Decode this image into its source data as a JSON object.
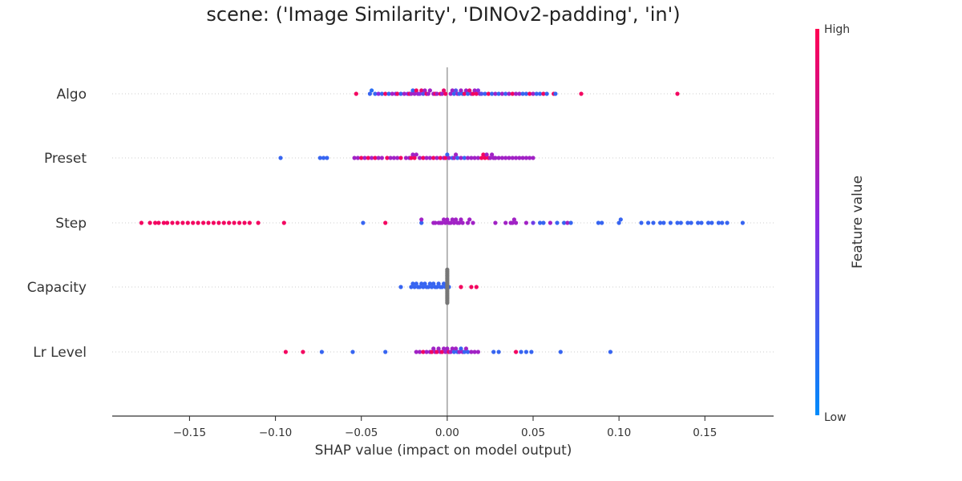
{
  "chart_data": {
    "type": "scatter",
    "subtype": "shap-beeswarm",
    "title": "scene: ('Image Similarity', 'DINOv2-padding', 'in')",
    "xlabel": "SHAP value (impact on model output)",
    "xlim": [
      -0.195,
      0.19
    ],
    "xticks": [
      -0.15,
      -0.1,
      -0.05,
      0.0,
      0.05,
      0.1,
      0.15
    ],
    "xtick_labels": [
      "−0.15",
      "−0.10",
      "−0.05",
      "0.00",
      "0.05",
      "0.10",
      "0.15"
    ],
    "grid": false,
    "colorbar": {
      "label": "Feature value",
      "high_label": "High",
      "low_label": "Low",
      "high_color": "#ff0052",
      "mid_color": "#8a2be2",
      "low_color": "#008bfb"
    },
    "zero_line_color": "#999999",
    "missing_value_color": "#777777",
    "features": [
      {
        "name": "Algo",
        "points": [
          [
            -0.053,
            0.95
          ],
          [
            -0.045,
            0.2
          ],
          [
            -0.044,
            0.15
          ],
          [
            -0.042,
            0.2
          ],
          [
            -0.04,
            0.5
          ],
          [
            -0.038,
            0.2
          ],
          [
            -0.036,
            0.95
          ],
          [
            -0.034,
            0.2
          ],
          [
            -0.032,
            0.6
          ],
          [
            -0.03,
            0.5
          ],
          [
            -0.029,
            0.95
          ],
          [
            -0.027,
            0.2
          ],
          [
            -0.025,
            0.6
          ],
          [
            -0.023,
            0.5
          ],
          [
            -0.022,
            0.95
          ],
          [
            -0.021,
            0.6
          ],
          [
            -0.02,
            0.2
          ],
          [
            -0.019,
            0.6
          ],
          [
            -0.018,
            0.95
          ],
          [
            -0.017,
            0.6
          ],
          [
            -0.016,
            0.5
          ],
          [
            -0.015,
            0.9
          ],
          [
            -0.014,
            0.3
          ],
          [
            -0.013,
            0.6
          ],
          [
            -0.012,
            0.95
          ],
          [
            -0.011,
            0.6
          ],
          [
            -0.01,
            0.6
          ],
          [
            -0.008,
            0.6
          ],
          [
            -0.007,
            0.95
          ],
          [
            -0.006,
            0.6
          ],
          [
            -0.004,
            0.95
          ],
          [
            -0.003,
            0.6
          ],
          [
            -0.002,
            0.9
          ],
          [
            -0.001,
            0.95
          ],
          [
            0.002,
            0.6
          ],
          [
            0.003,
            0.6
          ],
          [
            0.004,
            0.2
          ],
          [
            0.005,
            0.3
          ],
          [
            0.006,
            0.6
          ],
          [
            0.007,
            0.2
          ],
          [
            0.008,
            0.6
          ],
          [
            0.009,
            0.2
          ],
          [
            0.01,
            0.95
          ],
          [
            0.011,
            0.6
          ],
          [
            0.012,
            0.2
          ],
          [
            0.013,
            0.9
          ],
          [
            0.014,
            0.6
          ],
          [
            0.015,
            0.95
          ],
          [
            0.016,
            0.6
          ],
          [
            0.017,
            0.95
          ],
          [
            0.018,
            0.5
          ],
          [
            0.019,
            0.6
          ],
          [
            0.02,
            0.3
          ],
          [
            0.022,
            0.2
          ],
          [
            0.024,
            0.95
          ],
          [
            0.026,
            0.2
          ],
          [
            0.028,
            0.6
          ],
          [
            0.03,
            0.2
          ],
          [
            0.032,
            0.6
          ],
          [
            0.034,
            0.2
          ],
          [
            0.036,
            0.6
          ],
          [
            0.038,
            0.95
          ],
          [
            0.04,
            0.6
          ],
          [
            0.042,
            0.6
          ],
          [
            0.044,
            0.2
          ],
          [
            0.046,
            0.2
          ],
          [
            0.048,
            0.95
          ],
          [
            0.05,
            0.6
          ],
          [
            0.052,
            0.2
          ],
          [
            0.054,
            0.2
          ],
          [
            0.056,
            0.95
          ],
          [
            0.058,
            0.2
          ],
          [
            0.062,
            0.95
          ],
          [
            0.063,
            0.2
          ],
          [
            0.078,
            0.95
          ],
          [
            0.134,
            0.95
          ]
        ]
      },
      {
        "name": "Preset",
        "points": [
          [
            -0.097,
            0.2
          ],
          [
            -0.074,
            0.2
          ],
          [
            -0.072,
            0.2
          ],
          [
            -0.07,
            0.2
          ],
          [
            -0.054,
            0.6
          ],
          [
            -0.052,
            0.6
          ],
          [
            -0.05,
            0.95
          ],
          [
            -0.048,
            0.6
          ],
          [
            -0.046,
            0.95
          ],
          [
            -0.044,
            0.6
          ],
          [
            -0.042,
            0.95
          ],
          [
            -0.04,
            0.6
          ],
          [
            -0.038,
            0.6
          ],
          [
            -0.035,
            0.95
          ],
          [
            -0.033,
            0.6
          ],
          [
            -0.031,
            0.6
          ],
          [
            -0.029,
            0.6
          ],
          [
            -0.027,
            0.95
          ],
          [
            -0.024,
            0.6
          ],
          [
            -0.022,
            0.6
          ],
          [
            -0.021,
            0.95
          ],
          [
            -0.02,
            0.6
          ],
          [
            -0.019,
            0.95
          ],
          [
            -0.018,
            0.6
          ],
          [
            -0.016,
            0.6
          ],
          [
            -0.014,
            0.95
          ],
          [
            -0.012,
            0.6
          ],
          [
            -0.01,
            0.6
          ],
          [
            -0.008,
            0.95
          ],
          [
            -0.006,
            0.6
          ],
          [
            -0.004,
            0.95
          ],
          [
            -0.002,
            0.6
          ],
          [
            -0.001,
            0.95
          ],
          [
            0.0,
            0.2
          ],
          [
            0.001,
            0.6
          ],
          [
            0.003,
            0.2
          ],
          [
            0.004,
            0.6
          ],
          [
            0.005,
            0.6
          ],
          [
            0.006,
            0.2
          ],
          [
            0.008,
            0.6
          ],
          [
            0.01,
            0.2
          ],
          [
            0.012,
            0.6
          ],
          [
            0.014,
            0.6
          ],
          [
            0.016,
            0.6
          ],
          [
            0.018,
            0.6
          ],
          [
            0.02,
            0.95
          ],
          [
            0.021,
            0.95
          ],
          [
            0.022,
            0.95
          ],
          [
            0.023,
            0.6
          ],
          [
            0.024,
            0.95
          ],
          [
            0.025,
            0.6
          ],
          [
            0.026,
            0.6
          ],
          [
            0.027,
            0.6
          ],
          [
            0.028,
            0.6
          ],
          [
            0.03,
            0.6
          ],
          [
            0.032,
            0.6
          ],
          [
            0.034,
            0.6
          ],
          [
            0.036,
            0.6
          ],
          [
            0.038,
            0.6
          ],
          [
            0.04,
            0.6
          ],
          [
            0.042,
            0.6
          ],
          [
            0.044,
            0.6
          ],
          [
            0.046,
            0.6
          ],
          [
            0.048,
            0.6
          ],
          [
            0.05,
            0.6
          ]
        ]
      },
      {
        "name": "Step",
        "points": [
          [
            -0.178,
            0.95
          ],
          [
            -0.173,
            0.95
          ],
          [
            -0.17,
            0.95
          ],
          [
            -0.168,
            0.95
          ],
          [
            -0.165,
            0.95
          ],
          [
            -0.163,
            0.95
          ],
          [
            -0.16,
            0.95
          ],
          [
            -0.157,
            0.95
          ],
          [
            -0.154,
            0.95
          ],
          [
            -0.151,
            0.95
          ],
          [
            -0.148,
            0.95
          ],
          [
            -0.145,
            0.95
          ],
          [
            -0.142,
            0.95
          ],
          [
            -0.139,
            0.95
          ],
          [
            -0.136,
            0.95
          ],
          [
            -0.133,
            0.95
          ],
          [
            -0.13,
            0.95
          ],
          [
            -0.127,
            0.95
          ],
          [
            -0.124,
            0.95
          ],
          [
            -0.121,
            0.95
          ],
          [
            -0.118,
            0.95
          ],
          [
            -0.115,
            0.95
          ],
          [
            -0.11,
            0.95
          ],
          [
            -0.095,
            0.95
          ],
          [
            -0.049,
            0.2
          ],
          [
            -0.036,
            0.95
          ],
          [
            -0.015,
            0.2
          ],
          [
            -0.015,
            0.6
          ],
          [
            -0.008,
            0.6
          ],
          [
            -0.007,
            0.6
          ],
          [
            -0.005,
            0.6
          ],
          [
            -0.004,
            0.6
          ],
          [
            -0.003,
            0.6
          ],
          [
            -0.002,
            0.6
          ],
          [
            -0.001,
            0.6
          ],
          [
            0.0,
            0.6
          ],
          [
            0.001,
            0.6
          ],
          [
            0.002,
            0.6
          ],
          [
            0.003,
            0.6
          ],
          [
            0.004,
            0.6
          ],
          [
            0.005,
            0.6
          ],
          [
            0.006,
            0.6
          ],
          [
            0.007,
            0.6
          ],
          [
            0.008,
            0.6
          ],
          [
            0.009,
            0.6
          ],
          [
            0.012,
            0.6
          ],
          [
            0.013,
            0.6
          ],
          [
            0.015,
            0.6
          ],
          [
            0.028,
            0.6
          ],
          [
            0.034,
            0.6
          ],
          [
            0.037,
            0.6
          ],
          [
            0.038,
            0.6
          ],
          [
            0.039,
            0.6
          ],
          [
            0.04,
            0.6
          ],
          [
            0.046,
            0.6
          ],
          [
            0.05,
            0.4
          ],
          [
            0.054,
            0.2
          ],
          [
            0.056,
            0.2
          ],
          [
            0.06,
            0.6
          ],
          [
            0.064,
            0.2
          ],
          [
            0.068,
            0.2
          ],
          [
            0.07,
            0.6
          ],
          [
            0.072,
            0.2
          ],
          [
            0.088,
            0.2
          ],
          [
            0.09,
            0.2
          ],
          [
            0.1,
            0.2
          ],
          [
            0.101,
            0.2
          ],
          [
            0.113,
            0.2
          ],
          [
            0.117,
            0.2
          ],
          [
            0.12,
            0.2
          ],
          [
            0.124,
            0.2
          ],
          [
            0.126,
            0.2
          ],
          [
            0.13,
            0.2
          ],
          [
            0.134,
            0.2
          ],
          [
            0.136,
            0.2
          ],
          [
            0.14,
            0.2
          ],
          [
            0.142,
            0.2
          ],
          [
            0.146,
            0.2
          ],
          [
            0.148,
            0.2
          ],
          [
            0.152,
            0.2
          ],
          [
            0.154,
            0.2
          ],
          [
            0.158,
            0.2
          ],
          [
            0.16,
            0.2
          ],
          [
            0.163,
            0.2
          ],
          [
            0.172,
            0.2
          ]
        ]
      },
      {
        "name": "Capacity",
        "points": [
          [
            -0.027,
            0.2
          ],
          [
            -0.021,
            0.2
          ],
          [
            -0.02,
            0.2
          ],
          [
            -0.019,
            0.2
          ],
          [
            -0.018,
            0.2
          ],
          [
            -0.017,
            0.2
          ],
          [
            -0.016,
            0.2
          ],
          [
            -0.015,
            0.2
          ],
          [
            -0.014,
            0.2
          ],
          [
            -0.013,
            0.2
          ],
          [
            -0.012,
            0.2
          ],
          [
            -0.011,
            0.2
          ],
          [
            -0.01,
            0.2
          ],
          [
            -0.009,
            0.2
          ],
          [
            -0.008,
            0.2
          ],
          [
            -0.007,
            0.2
          ],
          [
            -0.006,
            0.2
          ],
          [
            -0.005,
            0.2
          ],
          [
            -0.004,
            0.2
          ],
          [
            -0.003,
            0.2
          ],
          [
            -0.002,
            0.2
          ],
          [
            -0.001,
            0.2
          ],
          [
            0.0,
            0.2
          ],
          [
            0.001,
            0.2
          ],
          [
            0.008,
            0.95
          ],
          [
            0.014,
            0.95
          ],
          [
            0.017,
            0.95
          ]
        ],
        "missing_at_zero": 24
      },
      {
        "name": "Lr Level",
        "points": [
          [
            -0.094,
            0.95
          ],
          [
            -0.084,
            0.95
          ],
          [
            -0.073,
            0.2
          ],
          [
            -0.055,
            0.2
          ],
          [
            -0.036,
            0.2
          ],
          [
            -0.018,
            0.6
          ],
          [
            -0.016,
            0.6
          ],
          [
            -0.014,
            0.95
          ],
          [
            -0.012,
            0.6
          ],
          [
            -0.01,
            0.6
          ],
          [
            -0.009,
            0.95
          ],
          [
            -0.008,
            0.6
          ],
          [
            -0.007,
            0.6
          ],
          [
            -0.006,
            0.95
          ],
          [
            -0.005,
            0.6
          ],
          [
            -0.004,
            0.6
          ],
          [
            -0.003,
            0.95
          ],
          [
            -0.002,
            0.6
          ],
          [
            -0.001,
            0.6
          ],
          [
            0.0,
            0.6
          ],
          [
            0.001,
            0.95
          ],
          [
            0.002,
            0.6
          ],
          [
            0.003,
            0.6
          ],
          [
            0.004,
            0.2
          ],
          [
            0.005,
            0.6
          ],
          [
            0.006,
            0.2
          ],
          [
            0.007,
            0.6
          ],
          [
            0.008,
            0.2
          ],
          [
            0.009,
            0.6
          ],
          [
            0.01,
            0.2
          ],
          [
            0.011,
            0.6
          ],
          [
            0.012,
            0.2
          ],
          [
            0.014,
            0.6
          ],
          [
            0.016,
            0.6
          ],
          [
            0.018,
            0.6
          ],
          [
            0.027,
            0.2
          ],
          [
            0.03,
            0.2
          ],
          [
            0.04,
            0.95
          ],
          [
            0.043,
            0.2
          ],
          [
            0.046,
            0.2
          ],
          [
            0.049,
            0.2
          ],
          [
            0.066,
            0.2
          ],
          [
            0.095,
            0.2
          ]
        ]
      }
    ]
  }
}
